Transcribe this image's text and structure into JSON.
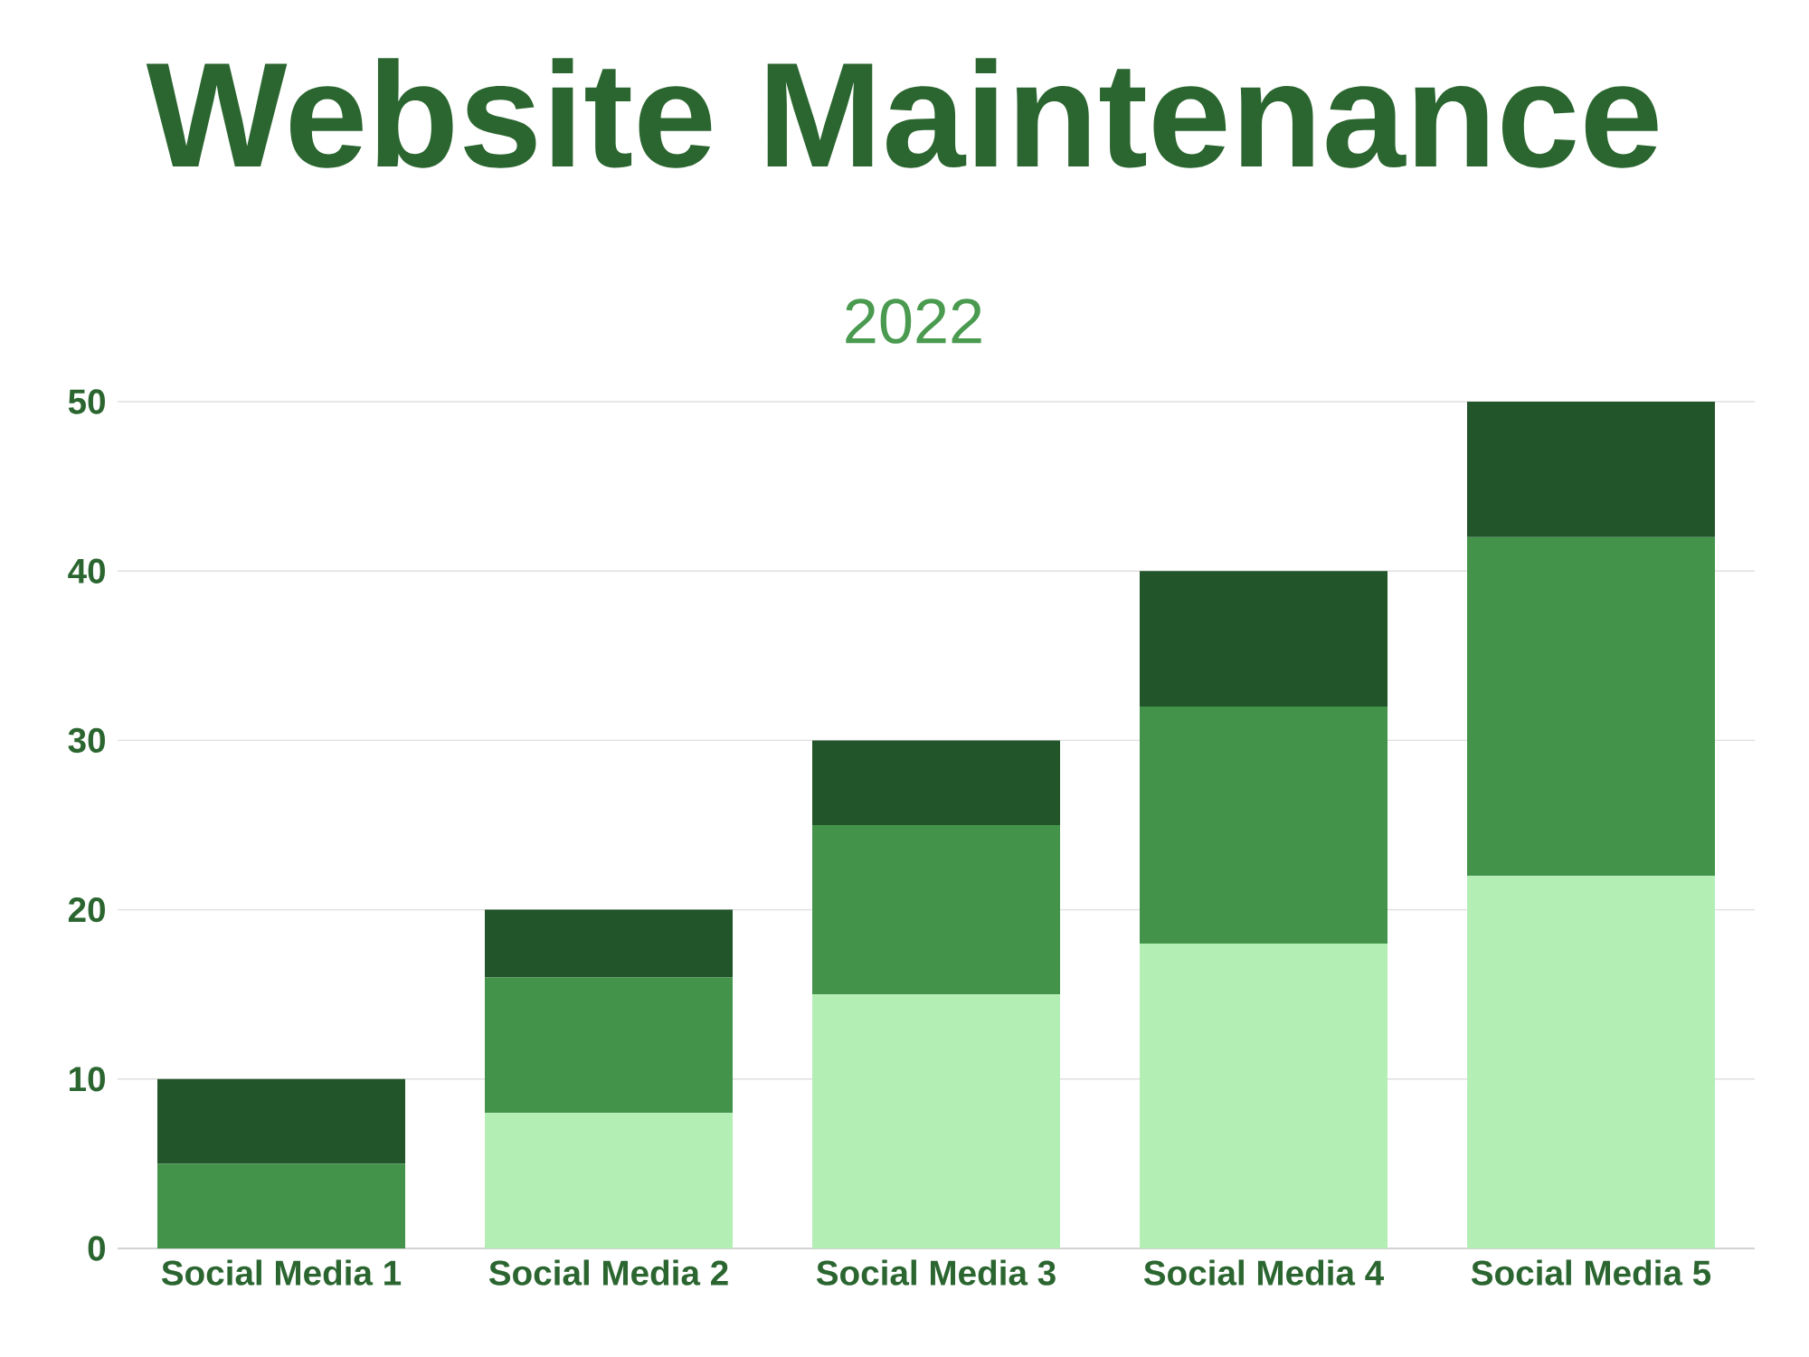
{
  "chart_data": {
    "type": "bar",
    "title": "Website Maintenance",
    "subtitle": "2022",
    "categories": [
      "Social Media 1",
      "Social Media 2",
      "Social Media 3",
      "Social Media 4",
      "Social Media 5"
    ],
    "stacked": true,
    "series": [
      {
        "color": "#b3efb5",
        "values": [
          0,
          8,
          15,
          18,
          22
        ]
      },
      {
        "color": "#43944a",
        "values": [
          5,
          8,
          10,
          14,
          20
        ]
      },
      {
        "color": "#22552a",
        "values": [
          5,
          4,
          5,
          8,
          8
        ]
      }
    ],
    "ylim": [
      0,
      50
    ],
    "yticks": [
      0,
      10,
      20,
      30,
      40,
      50
    ],
    "grid": "y"
  }
}
